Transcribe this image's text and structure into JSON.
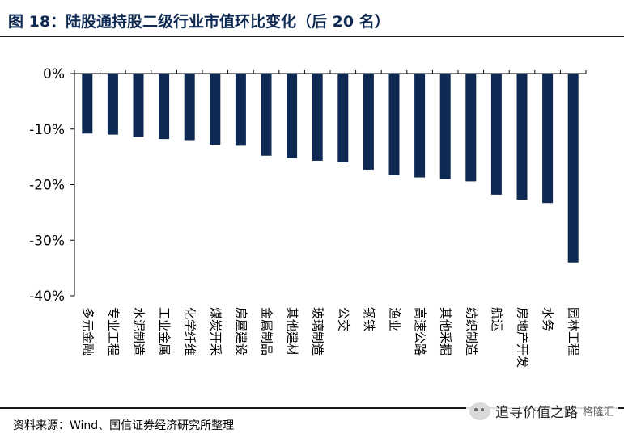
{
  "title": "图 18：陆股通持股二级行业市值环比变化（后 20 名）",
  "source": "资料来源：Wind、国信证券经济研究所整理",
  "watermark": {
    "text": "追寻价值之路",
    "sub": "格隆汇"
  },
  "colors": {
    "bar": "#0f2a52",
    "axis": "#000000"
  },
  "chart_data": {
    "type": "bar",
    "title": "图 18：陆股通持股二级行业市值环比变化（后 20 名）",
    "xlabel": "",
    "ylabel": "",
    "ylim": [
      -40,
      0
    ],
    "yticks": [
      0,
      -10,
      -20,
      -30,
      -40
    ],
    "ytick_format": "%",
    "grid": false,
    "categories": [
      "多元金融",
      "专业工程",
      "水泥制造",
      "工业金属",
      "化学纤维",
      "煤炭开采",
      "房屋建设",
      "金属制品",
      "其他建材",
      "玻璃制造",
      "公交",
      "钢铁",
      "渔业",
      "高速公路",
      "其他采掘",
      "纺织制造",
      "航运",
      "房地产开发",
      "水务",
      "园林工程"
    ],
    "values": [
      -10.8,
      -11.0,
      -11.4,
      -11.8,
      -12.0,
      -12.8,
      -13.0,
      -14.8,
      -15.2,
      -15.7,
      -16.0,
      -17.3,
      -18.3,
      -18.7,
      -19.0,
      -19.4,
      -21.8,
      -22.7,
      -23.3,
      -34.0
    ]
  }
}
